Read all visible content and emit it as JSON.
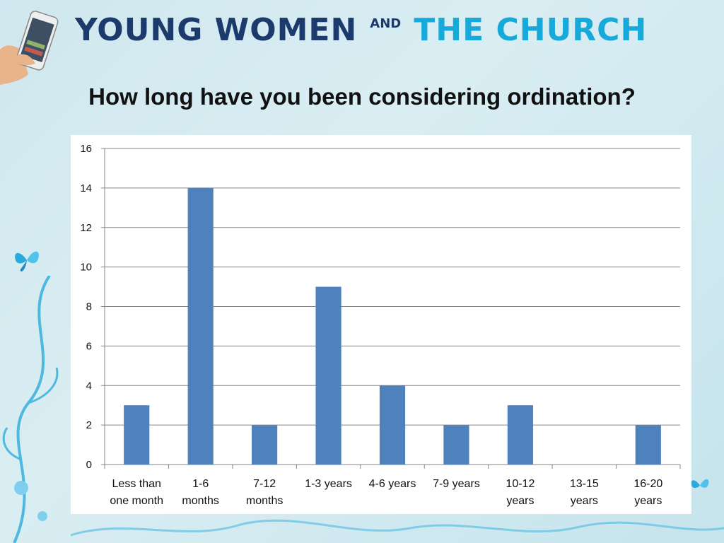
{
  "header": {
    "brand_part1": "YOUNG WOMEN",
    "brand_and": "AND",
    "brand_part2": "THE CHURCH"
  },
  "colors": {
    "bar": "#4f81bd",
    "brand_dark": "#1c3a6b",
    "brand_light": "#17a9d9",
    "gridline": "#868686"
  },
  "chart_data": {
    "type": "bar",
    "title": "How long have you been considering ordination?",
    "xlabel": "",
    "ylabel": "",
    "categories": [
      [
        "Less than",
        "one month"
      ],
      [
        "1-6",
        "months"
      ],
      [
        "7-12",
        "months"
      ],
      [
        "1-3 years"
      ],
      [
        "4-6 years"
      ],
      [
        "7-9 years"
      ],
      [
        "10-12",
        "years"
      ],
      [
        "13-15",
        "years"
      ],
      [
        "16-20",
        "years"
      ]
    ],
    "values": [
      3,
      14,
      2,
      9,
      4,
      2,
      3,
      0,
      2
    ],
    "ylim": [
      0,
      16
    ],
    "yticks": [
      0,
      2,
      4,
      6,
      8,
      10,
      12,
      14,
      16
    ],
    "grid": true,
    "legend": "none"
  }
}
